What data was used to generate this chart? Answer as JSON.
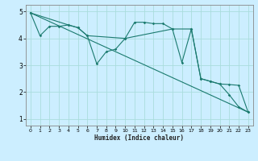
{
  "xlabel": "Humidex (Indice chaleur)",
  "ylabel": "",
  "background_color": "#cceeff",
  "line_color": "#1a7a6e",
  "grid_color": "#aadddd",
  "xlim": [
    -0.5,
    23.5
  ],
  "ylim": [
    0.75,
    5.25
  ],
  "yticks": [
    1,
    2,
    3,
    4,
    5
  ],
  "xticks": [
    0,
    1,
    2,
    3,
    4,
    5,
    6,
    7,
    8,
    9,
    10,
    11,
    12,
    13,
    14,
    15,
    16,
    17,
    18,
    19,
    20,
    21,
    22,
    23
  ],
  "line1_x": [
    0,
    1,
    2,
    3,
    4,
    5,
    6,
    7,
    8,
    9,
    10,
    11,
    12,
    13,
    14,
    15,
    16,
    17,
    18,
    19,
    20,
    21,
    22,
    23
  ],
  "line1_y": [
    4.95,
    4.1,
    4.45,
    4.45,
    4.5,
    4.4,
    4.1,
    3.05,
    3.5,
    3.6,
    4.0,
    4.6,
    4.6,
    4.55,
    4.55,
    4.35,
    3.1,
    4.35,
    2.5,
    2.4,
    2.3,
    1.9,
    1.45,
    1.25
  ],
  "line2_x": [
    0,
    4,
    5,
    6,
    10,
    15,
    17,
    18,
    19,
    20,
    21,
    22,
    23
  ],
  "line2_y": [
    4.95,
    4.5,
    4.4,
    4.1,
    4.0,
    4.35,
    4.35,
    2.5,
    2.4,
    2.3,
    2.28,
    2.25,
    1.25
  ],
  "line3_x": [
    0,
    23
  ],
  "line3_y": [
    4.95,
    1.25
  ]
}
